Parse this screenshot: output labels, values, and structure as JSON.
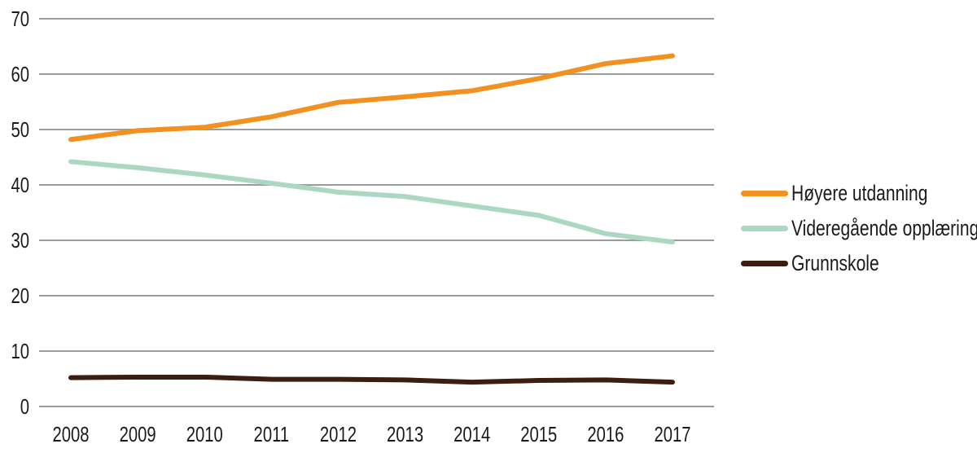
{
  "chart_data": {
    "type": "line",
    "title": "",
    "xlabel": "",
    "ylabel": "",
    "x_labels": [
      "2008",
      "2009",
      "2010",
      "2011",
      "2012",
      "2013",
      "2014",
      "2015",
      "2016",
      "2017"
    ],
    "ylim": [
      0,
      70
    ],
    "yticks": [
      0,
      10,
      20,
      30,
      40,
      50,
      60,
      70
    ],
    "grid": "horizontal",
    "legend_position": "right-center",
    "series": [
      {
        "name": "Høyere utdanning",
        "color": "#F29120",
        "values": [
          48.2,
          49.8,
          50.4,
          52.3,
          54.9,
          55.9,
          57.0,
          59.2,
          61.9,
          63.3
        ]
      },
      {
        "name": "Videregående opplæring",
        "color": "#ACD8C3",
        "values": [
          44.2,
          43.1,
          41.8,
          40.3,
          38.7,
          37.9,
          36.2,
          34.5,
          31.2,
          29.7
        ]
      },
      {
        "name": "Grunnskole",
        "color": "#3B1E0F",
        "values": [
          5.2,
          5.3,
          5.3,
          4.9,
          4.9,
          4.8,
          4.4,
          4.7,
          4.8,
          4.4
        ]
      }
    ]
  },
  "styles": {
    "grid_color": "#9B9B9B",
    "text_color": "#1A1A1A",
    "background": "#FFFFFF"
  }
}
